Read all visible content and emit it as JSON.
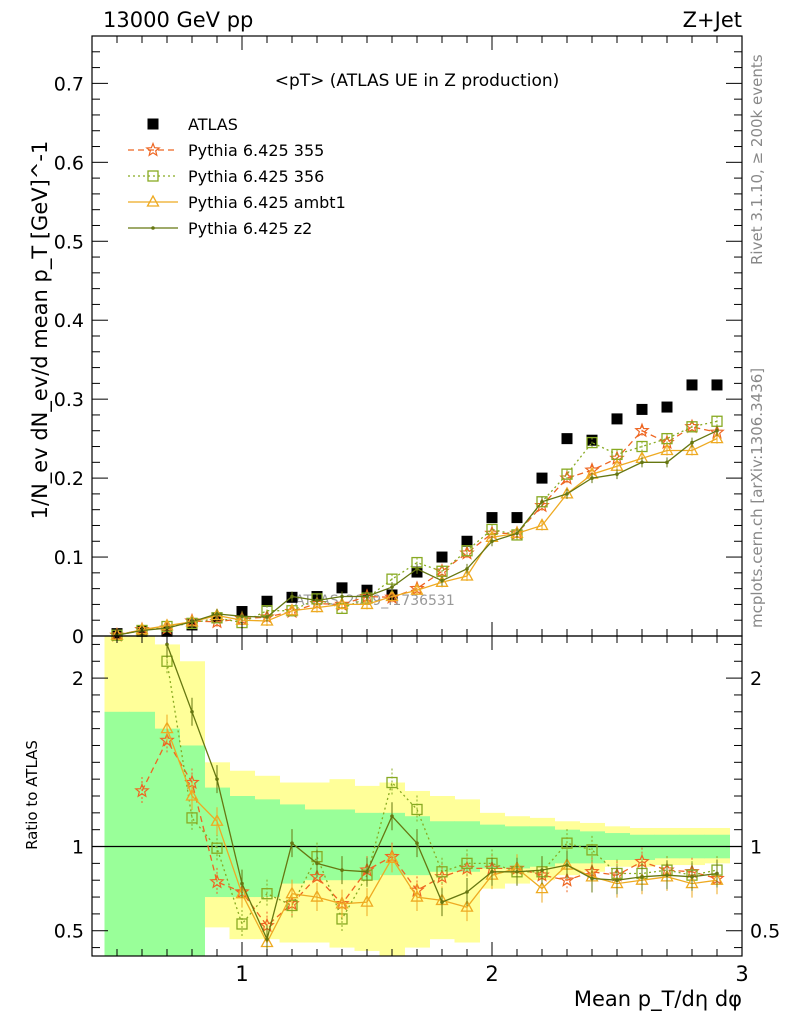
{
  "header": {
    "left": "13000 GeV pp",
    "right": "Z+Jet"
  },
  "side_labels": {
    "rivet": "Rivet 3.1.10, ≥ 200k events",
    "mcplots": "mcplots.cern.ch [arXiv:1306.3436]"
  },
  "watermark": "ATLAS_2019_I1736531",
  "colors": {
    "atlas": "#000000",
    "p355": "#ee6622",
    "p356": "#88aa22",
    "ambt1": "#eeaa22",
    "z2": "#667711",
    "band_inner": "#99ff99",
    "band_outer": "#ffff99"
  },
  "chart_data": [
    {
      "type": "scatter",
      "title": "<pT> (ATLAS UE in Z production)",
      "xlabel": "Mean p_T/dη dφ",
      "ylabel": "1/N_ev dN_ev/d mean p_T [GeV]^-1",
      "xlim": [
        0.4,
        3.0
      ],
      "ylim": [
        0,
        0.76
      ],
      "yticks": [
        0,
        0.1,
        0.2,
        0.3,
        0.4,
        0.5,
        0.6,
        0.7
      ],
      "yticklabels": [
        "0",
        "0.1",
        "0.2",
        "0.3",
        "0.4",
        "0.5",
        "0.6",
        "0.7"
      ],
      "legend_position": "top-left",
      "x": [
        0.5,
        0.6,
        0.7,
        0.8,
        0.9,
        1.0,
        1.1,
        1.2,
        1.3,
        1.4,
        1.5,
        1.6,
        1.7,
        1.8,
        1.9,
        2.0,
        2.1,
        2.2,
        2.3,
        2.4,
        2.5,
        2.6,
        2.7,
        2.8,
        2.9
      ],
      "series": [
        {
          "name": "ATLAS",
          "key": "atlas",
          "marker": "square",
          "values": [
            0.003,
            0.006,
            0.006,
            0.014,
            0.023,
            0.031,
            0.044,
            0.049,
            0.05,
            0.061,
            0.058,
            0.052,
            0.081,
            0.1,
            0.12,
            0.15,
            0.15,
            0.2,
            0.25,
            0.248,
            0.275,
            0.287,
            0.29,
            0.318,
            0.318
          ]
        },
        {
          "name": "Pythia 6.425 355",
          "key": "p355",
          "marker": "star",
          "dash": "6,4",
          "values": [
            0.001,
            0.008,
            0.01,
            0.019,
            0.018,
            0.022,
            0.024,
            0.031,
            0.041,
            0.04,
            0.05,
            0.049,
            0.06,
            0.082,
            0.105,
            0.13,
            0.13,
            0.165,
            0.2,
            0.21,
            0.225,
            0.26,
            0.245,
            0.265,
            0.258
          ]
        },
        {
          "name": "Pythia 6.425 356",
          "key": "p356",
          "marker": "opensquare",
          "dash": "2,3",
          "values": [
            0.001,
            0.007,
            0.012,
            0.016,
            0.023,
            0.017,
            0.032,
            0.032,
            0.047,
            0.035,
            0.048,
            0.072,
            0.093,
            0.082,
            0.108,
            0.135,
            0.128,
            0.17,
            0.205,
            0.245,
            0.23,
            0.24,
            0.25,
            0.265,
            0.272
          ]
        },
        {
          "name": "Pythia 6.425 ambt1",
          "key": "ambt1",
          "marker": "triangle",
          "dash": "",
          "values": [
            0.001,
            0.008,
            0.013,
            0.018,
            0.026,
            0.02,
            0.019,
            0.032,
            0.036,
            0.04,
            0.04,
            0.05,
            0.058,
            0.068,
            0.076,
            0.125,
            0.13,
            0.14,
            0.18,
            0.205,
            0.215,
            0.225,
            0.235,
            0.235,
            0.25
          ]
        },
        {
          "name": "Pythia 6.425 z2",
          "key": "z2",
          "marker": "dot",
          "dash": "",
          "values": [
            0.001,
            0.007,
            0.01,
            0.018,
            0.028,
            0.025,
            0.024,
            0.05,
            0.045,
            0.05,
            0.05,
            0.062,
            0.085,
            0.07,
            0.085,
            0.12,
            0.13,
            0.17,
            0.18,
            0.2,
            0.205,
            0.22,
            0.22,
            0.245,
            0.26
          ]
        }
      ]
    },
    {
      "type": "scatter",
      "ylabel": "Ratio to ATLAS",
      "xlim": [
        0.4,
        3.0
      ],
      "ylim": [
        0.35,
        2.25
      ],
      "yticks": [
        0.5,
        1,
        2
      ],
      "yticklabels": [
        "0.5",
        "1",
        "2"
      ],
      "xticks": [
        1,
        2,
        3
      ],
      "xticklabels": [
        "1",
        "2",
        "3"
      ],
      "x": [
        0.5,
        0.6,
        0.7,
        0.8,
        0.9,
        1.0,
        1.1,
        1.2,
        1.3,
        1.4,
        1.5,
        1.6,
        1.7,
        1.8,
        1.9,
        2.0,
        2.1,
        2.2,
        2.3,
        2.4,
        2.5,
        2.6,
        2.7,
        2.8,
        2.9
      ],
      "band_inner": {
        "low": [
          0.3,
          0.3,
          0.3,
          0.3,
          0.7,
          0.7,
          0.7,
          0.78,
          0.8,
          0.8,
          0.8,
          0.83,
          0.83,
          0.85,
          0.85,
          0.87,
          0.87,
          0.88,
          0.9,
          0.9,
          0.92,
          0.92,
          0.93,
          0.93,
          0.93
        ],
        "high": [
          1.8,
          1.8,
          1.7,
          1.6,
          1.35,
          1.3,
          1.28,
          1.25,
          1.22,
          1.22,
          1.2,
          1.2,
          1.18,
          1.15,
          1.15,
          1.13,
          1.12,
          1.12,
          1.1,
          1.09,
          1.08,
          1.07,
          1.07,
          1.07,
          1.07
        ]
      },
      "band_outer": {
        "low": [
          0.3,
          0.3,
          0.3,
          0.3,
          0.52,
          0.45,
          0.45,
          0.43,
          0.43,
          0.4,
          0.38,
          0.33,
          0.4,
          0.45,
          0.43,
          0.75,
          0.78,
          0.8,
          0.83,
          0.85,
          0.88,
          0.88,
          0.89,
          0.89,
          0.9
        ],
        "high": [
          2.3,
          2.3,
          2.2,
          2.1,
          1.5,
          1.45,
          1.42,
          1.38,
          1.38,
          1.4,
          1.36,
          1.38,
          1.33,
          1.3,
          1.28,
          1.2,
          1.18,
          1.17,
          1.15,
          1.14,
          1.12,
          1.11,
          1.11,
          1.11,
          1.11
        ]
      },
      "series": [
        {
          "name": "Pythia 6.425 355",
          "key": "p355",
          "marker": "star",
          "dash": "6,4",
          "values": [
            null,
            1.33,
            1.63,
            1.38,
            0.79,
            0.73,
            0.53,
            0.66,
            0.82,
            0.66,
            0.86,
            0.94,
            0.74,
            0.82,
            0.87,
            0.87,
            0.87,
            0.83,
            0.8,
            0.85,
            0.83,
            0.91,
            0.86,
            0.85,
            0.81
          ]
        },
        {
          "name": "Pythia 6.425 356",
          "key": "p356",
          "marker": "opensquare",
          "dash": "2,3",
          "values": [
            null,
            null,
            2.1,
            1.17,
            0.99,
            0.54,
            0.72,
            0.65,
            0.94,
            0.57,
            0.83,
            1.38,
            1.22,
            0.85,
            0.9,
            0.9,
            0.85,
            0.85,
            1.02,
            0.98,
            0.84,
            0.84,
            0.86,
            0.83,
            0.86
          ]
        },
        {
          "name": "Pythia 6.425 ambt1",
          "key": "ambt1",
          "marker": "triangle",
          "dash": "",
          "values": [
            null,
            null,
            1.7,
            1.3,
            1.15,
            0.72,
            0.43,
            0.72,
            0.7,
            0.66,
            0.67,
            0.93,
            0.7,
            0.68,
            0.64,
            0.83,
            0.87,
            0.75,
            0.89,
            0.82,
            0.78,
            0.8,
            0.82,
            0.78,
            0.8
          ]
        },
        {
          "name": "Pythia 6.425 z2",
          "key": "z2",
          "marker": "dot",
          "dash": "",
          "values": [
            null,
            null,
            2.2,
            1.8,
            1.4,
            0.78,
            0.45,
            1.02,
            0.9,
            0.86,
            0.85,
            1.18,
            1.02,
            0.67,
            0.73,
            0.85,
            0.85,
            0.86,
            0.89,
            0.81,
            0.8,
            0.82,
            0.83,
            0.82,
            0.84
          ]
        }
      ]
    }
  ]
}
